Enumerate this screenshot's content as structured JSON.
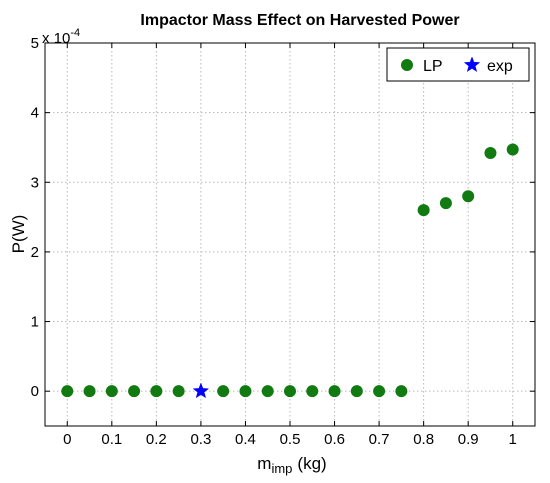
{
  "chart_data": {
    "type": "scatter",
    "title": "Impactor Mass Effect on Harvested Power",
    "xlabel": "m",
    "xlabel_sub": "imp",
    "xlabel_unit": "(kg)",
    "ylabel": "P(W)",
    "y_exponent_base": "x 10",
    "y_exponent_power": "-4",
    "xlim": [
      -0.05,
      1.05
    ],
    "ylim": [
      -0.5,
      5
    ],
    "x_ticks": [
      0,
      0.1,
      0.2,
      0.3,
      0.4,
      0.5,
      0.6,
      0.7,
      0.8,
      0.9,
      1
    ],
    "x_tick_labels": [
      "0",
      "0.1",
      "0.2",
      "0.3",
      "0.4",
      "0.5",
      "0.6",
      "0.7",
      "0.8",
      "0.9",
      "1"
    ],
    "y_ticks": [
      0,
      1,
      2,
      3,
      4,
      5
    ],
    "y_tick_labels": [
      "0",
      "1",
      "2",
      "3",
      "4",
      "5"
    ],
    "grid": true,
    "legend_position": "top-right",
    "series": [
      {
        "name": "LP",
        "marker": "circle",
        "color": "#117a11",
        "x": [
          0,
          0.05,
          0.1,
          0.15,
          0.2,
          0.25,
          0.35,
          0.4,
          0.45,
          0.5,
          0.55,
          0.6,
          0.65,
          0.7,
          0.75,
          0.8,
          0.85,
          0.9,
          0.95,
          1
        ],
        "y": [
          0,
          0,
          0,
          0,
          0,
          0,
          0,
          0,
          0,
          0,
          0,
          0,
          0,
          0,
          0,
          2.6,
          2.7,
          2.8,
          3.42,
          3.47
        ]
      },
      {
        "name": "exp",
        "marker": "star",
        "color": "#0000ff",
        "x": [
          0.3
        ],
        "y": [
          0
        ]
      }
    ]
  }
}
